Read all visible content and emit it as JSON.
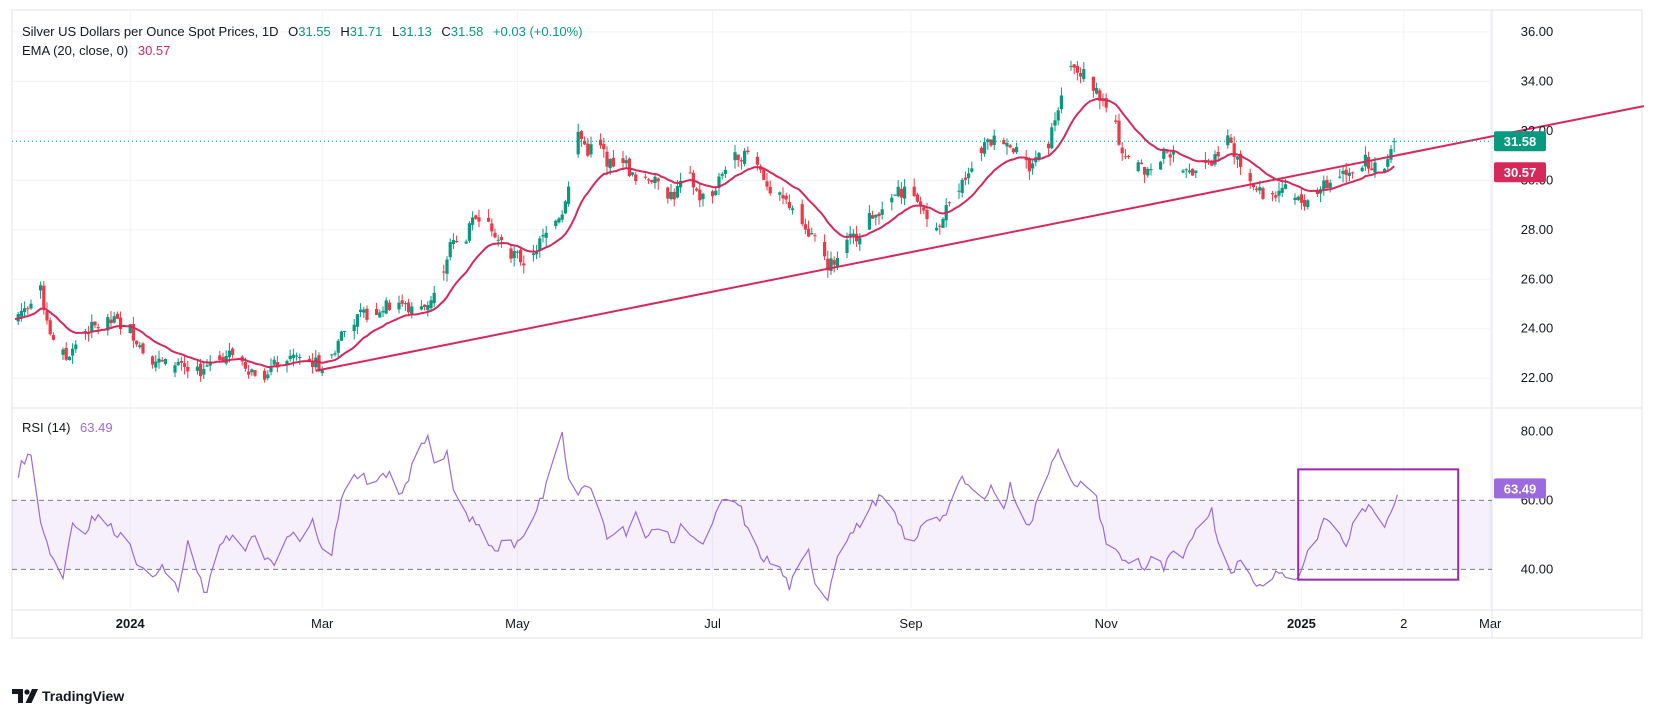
{
  "header": {
    "title": "Silver US Dollars per Ounce Spot Prices, 1D",
    "o_label": "O",
    "o_value": "31.55",
    "h_label": "H",
    "h_value": "31.71",
    "l_label": "L",
    "l_value": "31.13",
    "c_label": "C",
    "c_value": "31.58",
    "change": "+0.03 (+0.10%)",
    "ema_label": "EMA (20, close, 0)",
    "ema_value": "30.57",
    "rsi_label": "RSI (14)",
    "rsi_value": "63.49"
  },
  "price_badge": "31.58",
  "ema_badge": "30.57",
  "rsi_badge": "63.49",
  "footer": {
    "logo_text": "TradingView"
  },
  "colors": {
    "up": "#089981",
    "down": "#f23645",
    "ema": "#d8285a",
    "trendline": "#d8285a",
    "rsi": "#9c6ade",
    "rsi_box": "#9c27b0",
    "grid": "#f0f3fa"
  },
  "chart_data": [
    {
      "type": "candlestick",
      "title": "Silver US Dollars per Ounce Spot Prices, 1D",
      "ylim": [
        21.2,
        36.4
      ],
      "y_ticks": [
        "36.00",
        "34.00",
        "32.00",
        "30.00",
        "28.00",
        "26.00",
        "24.00",
        "22.00"
      ],
      "x_ticks": [
        "2024",
        "Mar",
        "May",
        "Jul",
        "Sep",
        "Nov",
        "2025",
        "2",
        "Mar"
      ],
      "x_tick_days": [
        0,
        60,
        121,
        182,
        244,
        305,
        366,
        398,
        425
      ],
      "start_day": -36,
      "price_anchors": [
        [
          -36,
          24.4
        ],
        [
          -31,
          25.2
        ],
        [
          -28,
          25.5
        ],
        [
          -24,
          23.4
        ],
        [
          -20,
          22.8
        ],
        [
          -15,
          23.9
        ],
        [
          -10,
          24.1
        ],
        [
          -5,
          24.3
        ],
        [
          0,
          24.0
        ],
        [
          5,
          22.9
        ],
        [
          10,
          22.6
        ],
        [
          16,
          22.4
        ],
        [
          21,
          22.2
        ],
        [
          27,
          22.9
        ],
        [
          32,
          23.0
        ],
        [
          37,
          22.4
        ],
        [
          41,
          22.1
        ],
        [
          46,
          22.6
        ],
        [
          51,
          22.9
        ],
        [
          56,
          22.7
        ],
        [
          60,
          22.5
        ],
        [
          63,
          22.9
        ],
        [
          66,
          23.8
        ],
        [
          72,
          24.5
        ],
        [
          78,
          24.8
        ],
        [
          84,
          25.1
        ],
        [
          89,
          24.6
        ],
        [
          92,
          24.9
        ],
        [
          96,
          25.6
        ],
        [
          100,
          27.4
        ],
        [
          104,
          27.5
        ],
        [
          108,
          28.5
        ],
        [
          111,
          28.8
        ],
        [
          115,
          27.6
        ],
        [
          119,
          27.1
        ],
        [
          123,
          26.7
        ],
        [
          127,
          27.3
        ],
        [
          131,
          28.0
        ],
        [
          135,
          28.8
        ],
        [
          138,
          30.5
        ],
        [
          140,
          31.9
        ],
        [
          143,
          31.2
        ],
        [
          146,
          31.5
        ],
        [
          150,
          30.6
        ],
        [
          154,
          30.9
        ],
        [
          158,
          29.9
        ],
        [
          162,
          30.2
        ],
        [
          166,
          29.6
        ],
        [
          170,
          29.4
        ],
        [
          174,
          30.3
        ],
        [
          178,
          29.3
        ],
        [
          182,
          29.4
        ],
        [
          186,
          30.6
        ],
        [
          190,
          31.0
        ],
        [
          194,
          31.1
        ],
        [
          197,
          30.4
        ],
        [
          201,
          29.4
        ],
        [
          205,
          29.1
        ],
        [
          209,
          28.8
        ],
        [
          212,
          27.9
        ],
        [
          215,
          27.6
        ],
        [
          218,
          26.6
        ],
        [
          221,
          26.8
        ],
        [
          225,
          27.6
        ],
        [
          228,
          27.9
        ],
        [
          232,
          28.6
        ],
        [
          236,
          29.0
        ],
        [
          240,
          29.5
        ],
        [
          243,
          29.7
        ],
        [
          246,
          29.0
        ],
        [
          249,
          28.7
        ],
        [
          252,
          28.1
        ],
        [
          255,
          28.9
        ],
        [
          259,
          29.6
        ],
        [
          263,
          30.7
        ],
        [
          267,
          31.4
        ],
        [
          271,
          31.7
        ],
        [
          274,
          31.6
        ],
        [
          278,
          31.0
        ],
        [
          281,
          30.5
        ],
        [
          284,
          31.1
        ],
        [
          287,
          31.5
        ],
        [
          289,
          32.6
        ],
        [
          291,
          33.6
        ],
        [
          293,
          34.5
        ],
        [
          296,
          34.4
        ],
        [
          299,
          34.2
        ],
        [
          302,
          33.6
        ],
        [
          305,
          32.9
        ],
        [
          308,
          32.1
        ],
        [
          310,
          31.2
        ],
        [
          313,
          30.6
        ],
        [
          317,
          30.4
        ],
        [
          321,
          30.6
        ],
        [
          324,
          31.3
        ],
        [
          328,
          30.5
        ],
        [
          331,
          30.2
        ],
        [
          335,
          30.9
        ],
        [
          338,
          30.7
        ],
        [
          341,
          31.5
        ],
        [
          344,
          31.6
        ],
        [
          346,
          30.8
        ],
        [
          349,
          30.3
        ],
        [
          352,
          29.6
        ],
        [
          355,
          29.3
        ],
        [
          358,
          29.5
        ],
        [
          361,
          29.9
        ],
        [
          364,
          29.2
        ],
        [
          367,
          29.1
        ],
        [
          370,
          29.6
        ],
        [
          374,
          29.8
        ],
        [
          377,
          30.2
        ],
        [
          380,
          30.4
        ],
        [
          383,
          30.5
        ],
        [
          386,
          30.8
        ],
        [
          389,
          30.6
        ],
        [
          392,
          30.4
        ],
        [
          394,
          31.1
        ],
        [
          395,
          31.58
        ]
      ],
      "ema20_last": 30.57,
      "last_close": 31.58,
      "trendline": {
        "start": [
          58,
          22.3
        ],
        "end": [
          473,
          33.0
        ]
      }
    },
    {
      "type": "line",
      "title": "RSI (14)",
      "ylim": [
        28.2,
        86.8
      ],
      "y_ticks": [
        "80.00",
        "60.00",
        "40.00"
      ],
      "band": [
        40,
        60
      ],
      "last_value": 63.49,
      "highlight_box": {
        "from_day": 365,
        "to_day": 415,
        "from_value": 37,
        "to_value": 69
      },
      "rsi_anchors": [
        [
          -36,
          66
        ],
        [
          -33,
          72
        ],
        [
          -31,
          73
        ],
        [
          -29,
          58
        ],
        [
          -26,
          48
        ],
        [
          -23,
          40
        ],
        [
          -21,
          38
        ],
        [
          -18,
          54
        ],
        [
          -15,
          49
        ],
        [
          -12,
          55
        ],
        [
          -9,
          55
        ],
        [
          -6,
          52
        ],
        [
          -3,
          50
        ],
        [
          0,
          48
        ],
        [
          3,
          40
        ],
        [
          6,
          37
        ],
        [
          9,
          41
        ],
        [
          12,
          38
        ],
        [
          15,
          34
        ],
        [
          18,
          47
        ],
        [
          21,
          39
        ],
        [
          24,
          32
        ],
        [
          27,
          46
        ],
        [
          30,
          50
        ],
        [
          33,
          49
        ],
        [
          36,
          45
        ],
        [
          39,
          50
        ],
        [
          42,
          44
        ],
        [
          45,
          40
        ],
        [
          48,
          49
        ],
        [
          51,
          50
        ],
        [
          54,
          47
        ],
        [
          57,
          54
        ],
        [
          60,
          47
        ],
        [
          63,
          45
        ],
        [
          66,
          60
        ],
        [
          69,
          66
        ],
        [
          72,
          68
        ],
        [
          75,
          65
        ],
        [
          78,
          66
        ],
        [
          81,
          69
        ],
        [
          84,
          61
        ],
        [
          87,
          66
        ],
        [
          90,
          77
        ],
        [
          93,
          78
        ],
        [
          96,
          68
        ],
        [
          99,
          73
        ],
        [
          102,
          60
        ],
        [
          105,
          55
        ],
        [
          108,
          54
        ],
        [
          111,
          50
        ],
        [
          114,
          45
        ],
        [
          117,
          50
        ],
        [
          120,
          47
        ],
        [
          123,
          51
        ],
        [
          126,
          54
        ],
        [
          129,
          62
        ],
        [
          132,
          73
        ],
        [
          135,
          79
        ],
        [
          137,
          66
        ],
        [
          140,
          62
        ],
        [
          143,
          64
        ],
        [
          146,
          59
        ],
        [
          149,
          50
        ],
        [
          152,
          52
        ],
        [
          155,
          51
        ],
        [
          158,
          56
        ],
        [
          161,
          48
        ],
        [
          164,
          53
        ],
        [
          167,
          50
        ],
        [
          170,
          48
        ],
        [
          173,
          54
        ],
        [
          176,
          50
        ],
        [
          179,
          46
        ],
        [
          182,
          54
        ],
        [
          185,
          59
        ],
        [
          188,
          61
        ],
        [
          191,
          57
        ],
        [
          194,
          48
        ],
        [
          197,
          44
        ],
        [
          200,
          42
        ],
        [
          203,
          40
        ],
        [
          206,
          35
        ],
        [
          209,
          40
        ],
        [
          212,
          45
        ],
        [
          215,
          33
        ],
        [
          218,
          32
        ],
        [
          221,
          45
        ],
        [
          224,
          49
        ],
        [
          227,
          52
        ],
        [
          230,
          56
        ],
        [
          233,
          60
        ],
        [
          236,
          61
        ],
        [
          239,
          55
        ],
        [
          242,
          50
        ],
        [
          245,
          47
        ],
        [
          248,
          54
        ],
        [
          251,
          56
        ],
        [
          254,
          55
        ],
        [
          257,
          60
        ],
        [
          260,
          66
        ],
        [
          263,
          63
        ],
        [
          266,
          60
        ],
        [
          269,
          65
        ],
        [
          272,
          55
        ],
        [
          275,
          64
        ],
        [
          278,
          58
        ],
        [
          281,
          52
        ],
        [
          284,
          61
        ],
        [
          287,
          69
        ],
        [
          290,
          76
        ],
        [
          293,
          66
        ],
        [
          296,
          63
        ],
        [
          299,
          67
        ],
        [
          302,
          60
        ],
        [
          305,
          48
        ],
        [
          308,
          45
        ],
        [
          311,
          42
        ],
        [
          314,
          44
        ],
        [
          317,
          40
        ],
        [
          320,
          44
        ],
        [
          323,
          40
        ],
        [
          326,
          45
        ],
        [
          329,
          42
        ],
        [
          332,
          50
        ],
        [
          335,
          55
        ],
        [
          338,
          57
        ],
        [
          341,
          44
        ],
        [
          344,
          40
        ],
        [
          347,
          42
        ],
        [
          350,
          38
        ],
        [
          353,
          35
        ],
        [
          356,
          38
        ],
        [
          359,
          40
        ],
        [
          362,
          36
        ],
        [
          365,
          38
        ],
        [
          368,
          45
        ],
        [
          371,
          50
        ],
        [
          374,
          55
        ],
        [
          377,
          51
        ],
        [
          380,
          47
        ],
        [
          383,
          55
        ],
        [
          386,
          58
        ],
        [
          389,
          56
        ],
        [
          392,
          53
        ],
        [
          395,
          60
        ],
        [
          397,
          63.49
        ]
      ]
    }
  ]
}
